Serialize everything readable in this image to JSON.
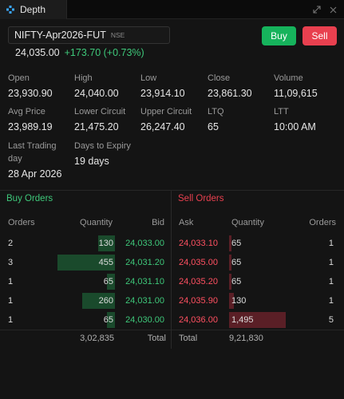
{
  "window": {
    "tab_title": "Depth",
    "tab_icon": "depth-icon"
  },
  "header": {
    "symbol": "NIFTY-Apr2026-FUT",
    "exchange": "NSE",
    "ltp": "24,035.00",
    "change": "+173.70 (+0.73%)",
    "buy_label": "Buy",
    "sell_label": "Sell"
  },
  "stats": [
    {
      "label": "Open",
      "value": "23,930.90"
    },
    {
      "label": "High",
      "value": "24,040.00"
    },
    {
      "label": "Low",
      "value": "23,914.10"
    },
    {
      "label": "Close",
      "value": "23,861.30"
    },
    {
      "label": "Volume",
      "value": "11,09,615"
    },
    {
      "label": "Avg Price",
      "value": "23,989.19"
    },
    {
      "label": "Lower Circuit",
      "value": "21,475.20"
    },
    {
      "label": "Upper Circuit",
      "value": "26,247.40"
    },
    {
      "label": "LTQ",
      "value": "65"
    },
    {
      "label": "LTT",
      "value": "10:00 AM"
    },
    {
      "label": "Last Trading day",
      "label_line1": "Last Trading",
      "label_line2": "day",
      "value": "28 Apr 2026"
    },
    {
      "label": "Days to Expiry",
      "value": "19 days"
    }
  ],
  "buy_orders": {
    "title": "Buy Orders",
    "headers": {
      "orders": "Orders",
      "quantity": "Quantity",
      "bid": "Bid"
    },
    "rows": [
      {
        "orders": "2",
        "quantity": "130",
        "price": "24,033.00",
        "depth_fraction": 0.29
      },
      {
        "orders": "3",
        "quantity": "455",
        "price": "24,031.20",
        "depth_fraction": 1.0
      },
      {
        "orders": "1",
        "quantity": "65",
        "price": "24,031.10",
        "depth_fraction": 0.14
      },
      {
        "orders": "1",
        "quantity": "260",
        "price": "24,031.00",
        "depth_fraction": 0.57
      },
      {
        "orders": "1",
        "quantity": "65",
        "price": "24,030.00",
        "depth_fraction": 0.14
      }
    ],
    "total_label": "Total",
    "total_quantity": "3,02,835"
  },
  "sell_orders": {
    "title": "Sell Orders",
    "headers": {
      "ask": "Ask",
      "quantity": "Quantity",
      "orders": "Orders"
    },
    "rows": [
      {
        "price": "24,033.10",
        "quantity": "65",
        "orders": "1",
        "depth_fraction": 0.04
      },
      {
        "price": "24,035.00",
        "quantity": "65",
        "orders": "1",
        "depth_fraction": 0.04
      },
      {
        "price": "24,035.20",
        "quantity": "65",
        "orders": "1",
        "depth_fraction": 0.04
      },
      {
        "price": "24,035.90",
        "quantity": "130",
        "orders": "1",
        "depth_fraction": 0.09
      },
      {
        "price": "24,036.00",
        "quantity": "1,495",
        "orders": "5",
        "depth_fraction": 1.0
      }
    ],
    "total_label": "Total",
    "total_quantity": "9,21,830"
  },
  "colors": {
    "buy": "#16b35c",
    "sell": "#e8404f",
    "positive": "#3ec87a",
    "negative": "#ff5061"
  }
}
